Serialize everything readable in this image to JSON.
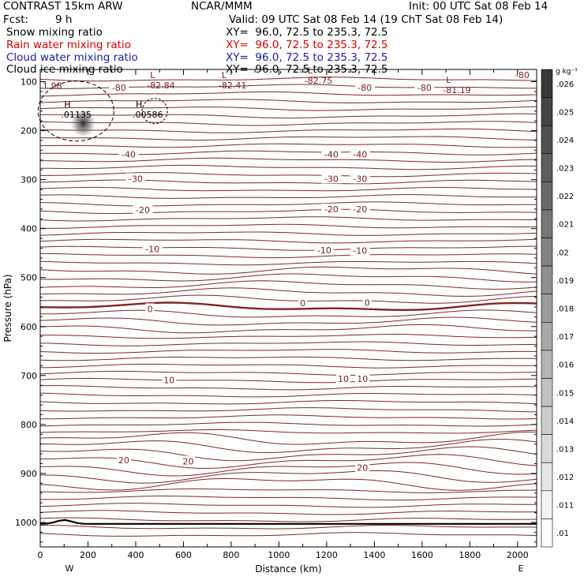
{
  "header": {
    "title": "CONTRAST 15km ARW",
    "center": "NCAR/MMM",
    "init": "Init: 00 UTC Sat 08 Feb 14",
    "fcst_label": "Fcst:",
    "fcst_value": "9 h",
    "valid": "Valid: 09 UTC Sat 08 Feb 14 (19 ChT Sat 08 Feb 14)"
  },
  "fields": [
    {
      "label": "Snow mixing ratio",
      "xy": "XY=  96.0, 72.5 to 235.3, 72.5",
      "color": "#000000"
    },
    {
      "label": "Rain water mixing ratio",
      "xy": "XY=  96.0, 72.5 to 235.3, 72.5",
      "color": "#dd0000"
    },
    {
      "label": "Cloud water mixing ratio",
      "xy": "XY=  96.0, 72.5 to 235.3, 72.5",
      "color": "#1a1aaa"
    },
    {
      "label": "Cloud ice mixing ratio",
      "xy": "XY=  96.0, 72.5 to 235.3, 72.5",
      "color": "#000000"
    }
  ],
  "colorbar": {
    "unit": "g kg⁻¹",
    "ticks": [
      ".026",
      ".025",
      ".024",
      ".023",
      ".022",
      ".021",
      ".02",
      ".019",
      ".018",
      ".017",
      ".016",
      ".015",
      ".014",
      ".013",
      ".012",
      ".011",
      ".01"
    ],
    "values": [
      0.026,
      0.025,
      0.024,
      0.023,
      0.022,
      0.021,
      0.02,
      0.019,
      0.018,
      0.017,
      0.016,
      0.015,
      0.014,
      0.013,
      0.012,
      0.011,
      0.01
    ]
  },
  "chart_data": {
    "type": "contour",
    "xlabel": "Distance (km)",
    "ylabel": "Pressure (hPa)",
    "xlim": [
      0,
      2080
    ],
    "ylim": [
      1050,
      75
    ],
    "x_ticks": [
      0,
      200,
      400,
      600,
      800,
      1000,
      1200,
      1400,
      1600,
      1800,
      2000
    ],
    "y_ticks": [
      100,
      200,
      300,
      400,
      500,
      600,
      700,
      800,
      900,
      1000
    ],
    "x_end_labels": {
      "left": "W",
      "right": "E"
    },
    "colors": {
      "temperature": "#7a1a1a",
      "mixing_ratio": "#000000"
    },
    "temperature_labels": [
      {
        "text": "-80",
        "x": 330,
        "p": 112
      },
      {
        "text": "-80",
        "x": 1360,
        "p": 112
      },
      {
        "text": "-80",
        "x": 1610,
        "p": 112
      },
      {
        "text": "-80",
        "x": 2020,
        "p": 86
      },
      {
        "text": "-40",
        "x": 370,
        "p": 248
      },
      {
        "text": "-40",
        "x": 1220,
        "p": 248
      },
      {
        "text": "-40",
        "x": 1340,
        "p": 248
      },
      {
        "text": "-30",
        "x": 400,
        "p": 298
      },
      {
        "text": "-30",
        "x": 1220,
        "p": 298
      },
      {
        "text": "-30",
        "x": 1340,
        "p": 298
      },
      {
        "text": "-20",
        "x": 430,
        "p": 362
      },
      {
        "text": "-20",
        "x": 1220,
        "p": 360
      },
      {
        "text": "-20",
        "x": 1340,
        "p": 360
      },
      {
        "text": "-10",
        "x": 470,
        "p": 442
      },
      {
        "text": "-10",
        "x": 1190,
        "p": 444
      },
      {
        "text": "-10",
        "x": 1340,
        "p": 445
      },
      {
        "text": "0",
        "x": 460,
        "p": 564
      },
      {
        "text": "0",
        "x": 1100,
        "p": 552
      },
      {
        "text": "0",
        "x": 1370,
        "p": 551
      },
      {
        "text": "10",
        "x": 540,
        "p": 709
      },
      {
        "text": "10",
        "x": 1270,
        "p": 707
      },
      {
        "text": "10",
        "x": 1350,
        "p": 707
      },
      {
        "text": "20",
        "x": 350,
        "p": 873
      },
      {
        "text": "20",
        "x": 620,
        "p": 875
      },
      {
        "text": "20",
        "x": 1350,
        "p": 888
      }
    ],
    "extrema_labels": [
      {
        "kind": "L",
        "value": "-82.84",
        "x": 500,
        "p": 102
      },
      {
        "kind": "L",
        "value": "-82.41",
        "x": 800,
        "p": 102
      },
      {
        "kind": "L",
        "value": "-82.75",
        "x": 1160,
        "p": 93
      },
      {
        "kind": "L",
        "value": "-81.19",
        "x": 1740,
        "p": 112
      },
      {
        "kind": "H",
        "value": ".01135",
        "x": 140,
        "p": 162
      },
      {
        "kind": "H",
        "value": ".00586",
        "x": 440,
        "p": 162
      }
    ],
    "edge_labels": [
      {
        "text": "1.98",
        "x": 10,
        "p": 108
      }
    ],
    "mixing_ratio_max": {
      "x": 180,
      "p": 185,
      "value": 0.01135
    }
  }
}
